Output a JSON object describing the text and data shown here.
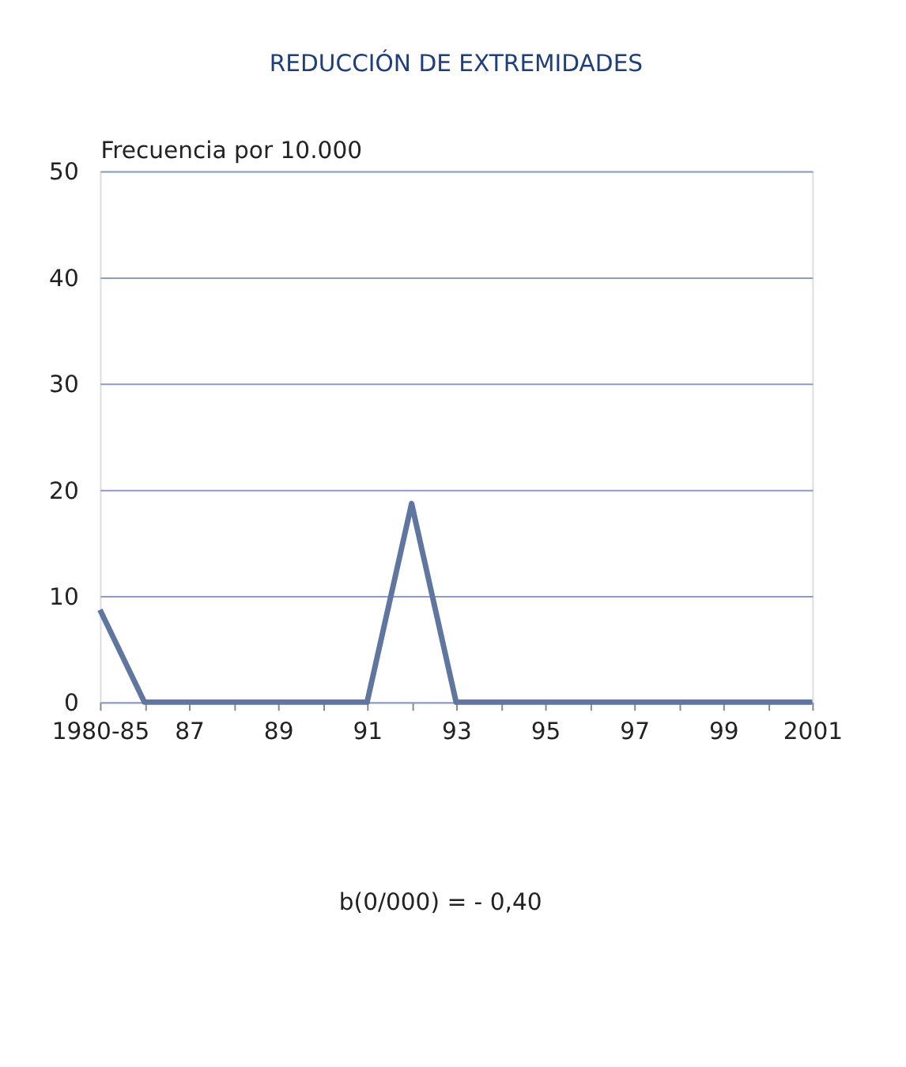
{
  "chart_data": {
    "type": "line",
    "title": "REDUCCIÓN DE EXTREMIDADES",
    "ylabel": "Frecuencia por 10.000",
    "categories": [
      "1980-85",
      null,
      "87",
      null,
      "89",
      null,
      "91",
      null,
      "93",
      null,
      "95",
      null,
      "97",
      null,
      "99",
      null,
      "2001"
    ],
    "series": [
      {
        "color": "#5f77a0",
        "values": [
          8.7,
          0,
          0,
          0,
          0,
          0,
          0,
          18.7,
          0,
          0,
          0,
          0,
          0,
          0,
          0,
          0,
          0
        ]
      }
    ],
    "ylim": [
      0,
      50
    ],
    "yticks": [
      0,
      10,
      20,
      30,
      40,
      50
    ],
    "grid": "y",
    "legend": false,
    "marker": "none",
    "line_style": "solid",
    "annotations": [
      "b(0/000) = - 0,40"
    ]
  }
}
